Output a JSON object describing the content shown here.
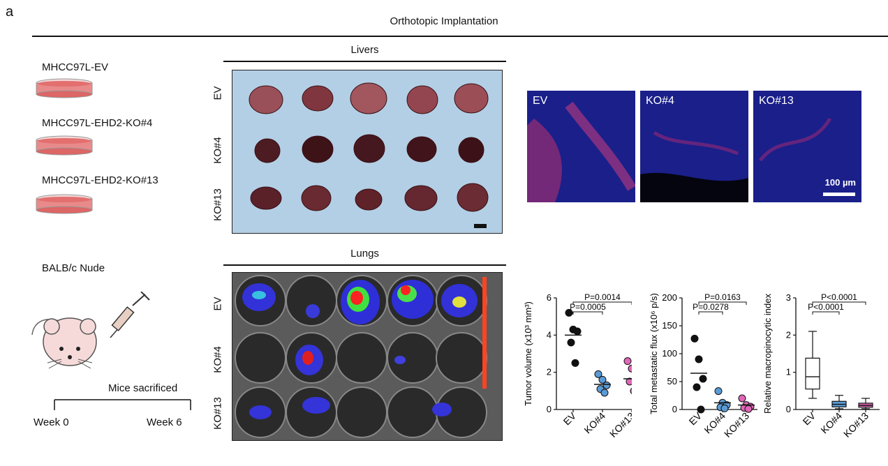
{
  "figure": {
    "panel_letter": "a",
    "title": "Orthotopic Implantation"
  },
  "left": {
    "cells": [
      "MHCC97L-EV",
      "MHCC97L-EHD2-KO#4",
      "MHCC97L-EHD2-KO#13"
    ],
    "mouse_label": "BALB/c Nude",
    "timeline": {
      "event": "Mice sacrificed",
      "start": "Week 0",
      "end": "Week 6"
    }
  },
  "livers": {
    "title": "Livers",
    "rows": [
      "EV",
      "KO#4",
      "KO#13"
    ]
  },
  "lungs": {
    "title": "Lungs",
    "rows": [
      "EV",
      "KO#4",
      "KO#13"
    ]
  },
  "if_panels": {
    "labels": [
      "EV",
      "KO#4",
      "KO#13"
    ],
    "scale_bar": "100 µm"
  },
  "chart_data": [
    {
      "type": "scatter",
      "ylabel": "Tumor volume (x10³ mm³)",
      "categories": [
        "EV",
        "KO#4",
        "KO#13"
      ],
      "ylim": [
        0,
        6
      ],
      "yticks": [
        "0",
        "2",
        "4",
        "6"
      ],
      "points": [
        [
          5.2,
          4.3,
          4.2,
          3.6,
          2.5
        ],
        [
          1.9,
          1.6,
          1.3,
          1.1,
          0.9
        ],
        [
          2.6,
          2.2,
          1.9,
          1.5,
          1.0
        ]
      ],
      "means": [
        4.0,
        1.35,
        1.65
      ],
      "colors": [
        "#111111",
        "#5b9bd5",
        "#e066b8"
      ],
      "annotations": [
        {
          "text": "P=0.0005",
          "from": 0,
          "to": 1
        },
        {
          "text": "P=0.0014",
          "from": 0,
          "to": 2
        }
      ]
    },
    {
      "type": "scatter",
      "ylabel": "Total metastatic flux (x10⁶ p/s)",
      "categories": [
        "EV",
        "KO#4",
        "KO#13"
      ],
      "ylim": [
        0,
        200
      ],
      "yticks": [
        "0",
        "50",
        "100",
        "150",
        "200"
      ],
      "points": [
        [
          127,
          90,
          55,
          40,
          0
        ],
        [
          33,
          12,
          8,
          4,
          2
        ],
        [
          20,
          8,
          5,
          3,
          1
        ]
      ],
      "means": [
        65,
        12,
        8
      ],
      "colors": [
        "#111111",
        "#5b9bd5",
        "#e066b8"
      ],
      "annotations": [
        {
          "text": "P=0.0278",
          "from": 0,
          "to": 1
        },
        {
          "text": "P=0.0163",
          "from": 0,
          "to": 2
        }
      ]
    },
    {
      "type": "box",
      "ylabel": "Relative macropinocytic index",
      "categories": [
        "EV",
        "KO#4",
        "KO#13"
      ],
      "ylim": [
        0,
        3
      ],
      "yticks": [
        "0",
        "1",
        "2",
        "3"
      ],
      "boxes": [
        {
          "min": 0.3,
          "q1": 0.55,
          "median": 0.88,
          "q3": 1.38,
          "max": 2.1
        },
        {
          "min": 0.02,
          "q1": 0.07,
          "median": 0.14,
          "q3": 0.22,
          "max": 0.38
        },
        {
          "min": 0.02,
          "q1": 0.06,
          "median": 0.11,
          "q3": 0.17,
          "max": 0.3
        }
      ],
      "colors": [
        "#ffffff",
        "#5b9bd5",
        "#e066b8"
      ],
      "annotations": [
        {
          "text": "P<0.0001",
          "from": 0,
          "to": 1
        },
        {
          "text": "P<0.0001",
          "from": 0,
          "to": 2
        }
      ]
    }
  ]
}
